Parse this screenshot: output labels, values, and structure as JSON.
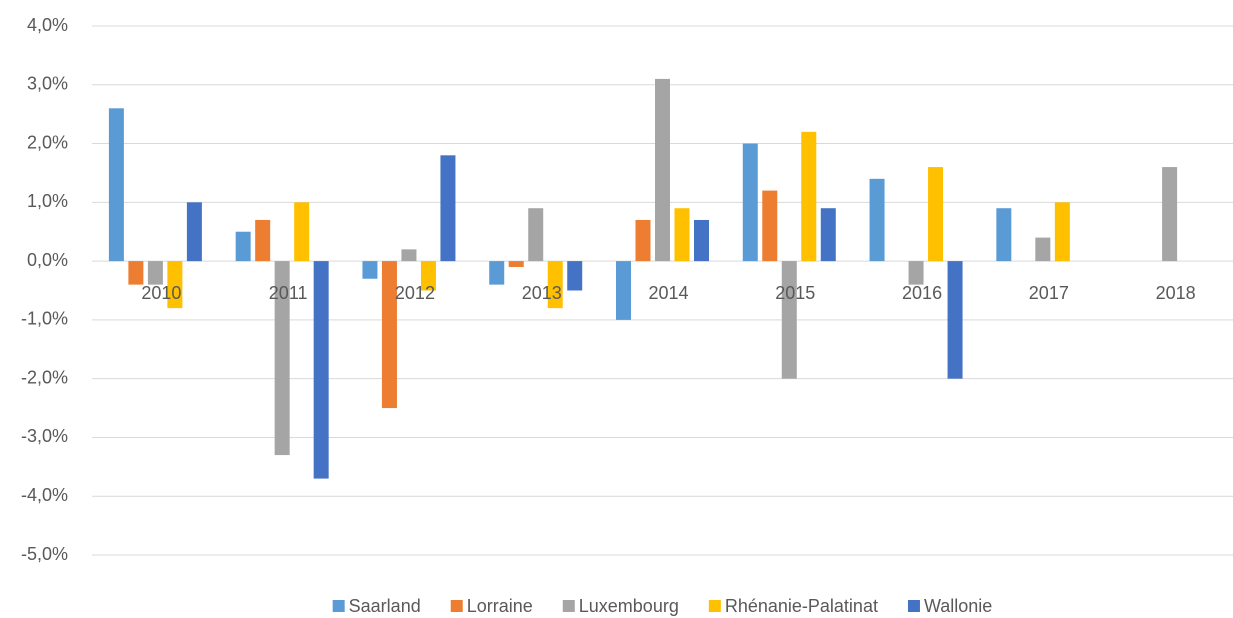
{
  "chart_data": {
    "type": "bar",
    "categories": [
      "2010",
      "2011",
      "2012",
      "2013",
      "2014",
      "2015",
      "2016",
      "2017",
      "2018"
    ],
    "series": [
      {
        "name": "Saarland",
        "color": "#5b9bd5",
        "values": [
          2.6,
          0.5,
          -0.3,
          -0.4,
          -1.0,
          2.0,
          1.4,
          0.9,
          null
        ]
      },
      {
        "name": "Lorraine",
        "color": "#ed7d31",
        "values": [
          -0.4,
          0.7,
          -2.5,
          -0.1,
          0.7,
          1.2,
          null,
          null,
          null
        ]
      },
      {
        "name": "Luxembourg",
        "color": "#a5a5a5",
        "values": [
          -0.4,
          -3.3,
          0.2,
          0.9,
          3.1,
          -2.0,
          -0.4,
          0.4,
          1.6
        ]
      },
      {
        "name": "Rhénanie-Palatinat",
        "color": "#ffc000",
        "values": [
          -0.8,
          1.0,
          -0.5,
          -0.8,
          0.9,
          2.2,
          1.6,
          1.0,
          null
        ]
      },
      {
        "name": "Wallonie",
        "color": "#4472c4",
        "values": [
          1.0,
          -3.7,
          1.8,
          -0.5,
          0.7,
          0.9,
          -2.0,
          null,
          null
        ]
      }
    ],
    "ylim": [
      -5,
      4
    ],
    "yticks": [
      {
        "value": -5,
        "label": "-5,0%"
      },
      {
        "value": -4,
        "label": "-4,0%"
      },
      {
        "value": -3,
        "label": "-3,0%"
      },
      {
        "value": -2,
        "label": "-2,0%"
      },
      {
        "value": -1,
        "label": "-1,0%"
      },
      {
        "value": 0,
        "label": "0,0%"
      },
      {
        "value": 1,
        "label": "1,0%"
      },
      {
        "value": 2,
        "label": "2,0%"
      },
      {
        "value": 3,
        "label": "3,0%"
      },
      {
        "value": 4,
        "label": "4,0%"
      }
    ],
    "grid": true,
    "legend": "bottom"
  }
}
